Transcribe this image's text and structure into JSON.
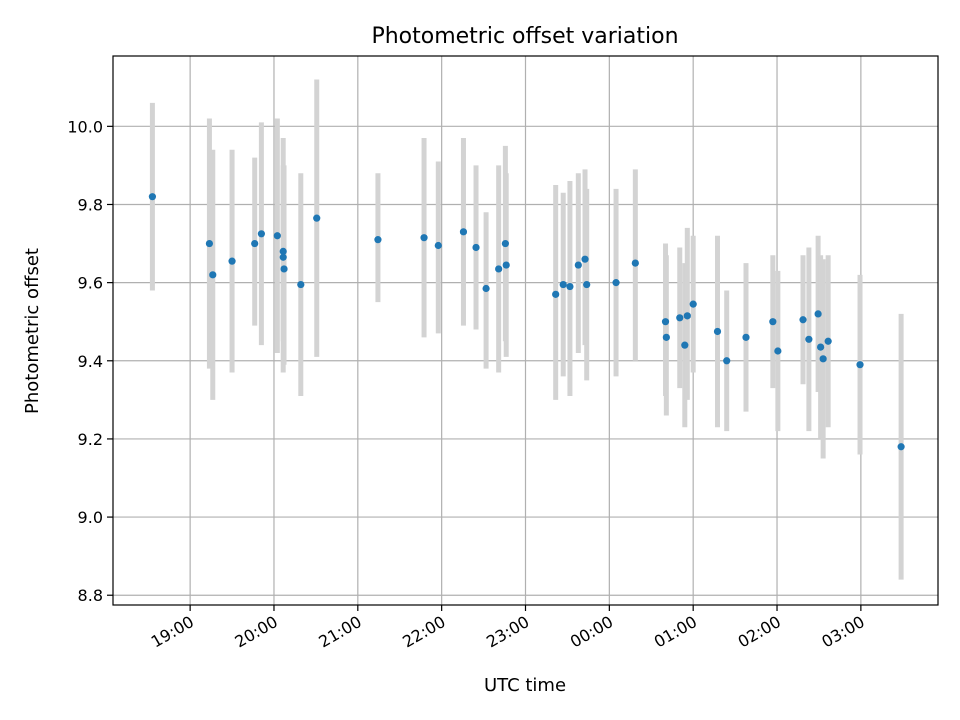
{
  "chart_data": {
    "type": "scatter",
    "title": "Photometric offset variation",
    "xlabel": "UTC time",
    "ylabel": "Photometric offset",
    "x_unit": "hours since 00:00 UTC",
    "xlim": [
      -5.92,
      3.92
    ],
    "ylim": [
      8.775,
      10.18
    ],
    "grid": true,
    "point_color": "#1f77b4",
    "errorbar_color": "#d3d3d3",
    "x_ticks": [
      {
        "value": -5,
        "label": "19:00"
      },
      {
        "value": -4,
        "label": "20:00"
      },
      {
        "value": -3,
        "label": "21:00"
      },
      {
        "value": -2,
        "label": "22:00"
      },
      {
        "value": -1,
        "label": "23:00"
      },
      {
        "value": 0,
        "label": "00:00"
      },
      {
        "value": 1,
        "label": "01:00"
      },
      {
        "value": 2,
        "label": "02:00"
      },
      {
        "value": 3,
        "label": "03:00"
      }
    ],
    "y_ticks": [
      {
        "value": 8.8,
        "label": "8.8"
      },
      {
        "value": 9.0,
        "label": "9.0"
      },
      {
        "value": 9.2,
        "label": "9.2"
      },
      {
        "value": 9.4,
        "label": "9.4"
      },
      {
        "value": 9.6,
        "label": "9.6"
      },
      {
        "value": 9.8,
        "label": "9.8"
      },
      {
        "value": 10.0,
        "label": "10.0"
      }
    ],
    "points": [
      {
        "x": -5.45,
        "y": 9.82,
        "lo": 9.58,
        "hi": 10.06
      },
      {
        "x": -4.77,
        "y": 9.7,
        "lo": 9.38,
        "hi": 10.02
      },
      {
        "x": -4.73,
        "y": 9.62,
        "lo": 9.3,
        "hi": 9.94
      },
      {
        "x": -4.5,
        "y": 9.655,
        "lo": 9.37,
        "hi": 9.94
      },
      {
        "x": -4.23,
        "y": 9.7,
        "lo": 9.49,
        "hi": 9.92
      },
      {
        "x": -4.15,
        "y": 9.725,
        "lo": 9.44,
        "hi": 10.01
      },
      {
        "x": -3.96,
        "y": 9.72,
        "lo": 9.42,
        "hi": 10.02
      },
      {
        "x": -3.89,
        "y": 9.68,
        "lo": 9.37,
        "hi": 9.97
      },
      {
        "x": -3.88,
        "y": 9.635,
        "lo": 9.39,
        "hi": 9.9
      },
      {
        "x": -3.89,
        "y": 9.665,
        "lo": 9.45,
        "hi": 9.9
      },
      {
        "x": -3.68,
        "y": 9.595,
        "lo": 9.31,
        "hi": 9.88
      },
      {
        "x": -3.49,
        "y": 9.765,
        "lo": 9.41,
        "hi": 10.12
      },
      {
        "x": -2.76,
        "y": 9.71,
        "lo": 9.55,
        "hi": 9.88
      },
      {
        "x": -2.21,
        "y": 9.715,
        "lo": 9.46,
        "hi": 9.97
      },
      {
        "x": -2.04,
        "y": 9.695,
        "lo": 9.47,
        "hi": 9.91
      },
      {
        "x": -1.74,
        "y": 9.73,
        "lo": 9.49,
        "hi": 9.97
      },
      {
        "x": -1.59,
        "y": 9.69,
        "lo": 9.48,
        "hi": 9.9
      },
      {
        "x": -1.47,
        "y": 9.585,
        "lo": 9.38,
        "hi": 9.78
      },
      {
        "x": -1.32,
        "y": 9.635,
        "lo": 9.37,
        "hi": 9.9
      },
      {
        "x": -1.24,
        "y": 9.7,
        "lo": 9.45,
        "hi": 9.95
      },
      {
        "x": -1.23,
        "y": 9.645,
        "lo": 9.41,
        "hi": 9.88
      },
      {
        "x": -0.64,
        "y": 9.57,
        "lo": 9.3,
        "hi": 9.85
      },
      {
        "x": -0.55,
        "y": 9.595,
        "lo": 9.36,
        "hi": 9.83
      },
      {
        "x": -0.47,
        "y": 9.59,
        "lo": 9.31,
        "hi": 9.86
      },
      {
        "x": -0.37,
        "y": 9.645,
        "lo": 9.42,
        "hi": 9.88
      },
      {
        "x": -0.29,
        "y": 9.66,
        "lo": 9.44,
        "hi": 9.89
      },
      {
        "x": -0.27,
        "y": 9.595,
        "lo": 9.35,
        "hi": 9.84
      },
      {
        "x": 0.08,
        "y": 9.6,
        "lo": 9.36,
        "hi": 9.84
      },
      {
        "x": 0.31,
        "y": 9.65,
        "lo": 9.4,
        "hi": 9.89
      },
      {
        "x": 0.67,
        "y": 9.5,
        "lo": 9.31,
        "hi": 9.7
      },
      {
        "x": 0.68,
        "y": 9.46,
        "lo": 9.26,
        "hi": 9.67
      },
      {
        "x": 0.84,
        "y": 9.51,
        "lo": 9.33,
        "hi": 9.69
      },
      {
        "x": 0.9,
        "y": 9.44,
        "lo": 9.23,
        "hi": 9.65
      },
      {
        "x": 0.93,
        "y": 9.515,
        "lo": 9.3,
        "hi": 9.74
      },
      {
        "x": 1.0,
        "y": 9.545,
        "lo": 9.37,
        "hi": 9.72
      },
      {
        "x": 1.29,
        "y": 9.475,
        "lo": 9.23,
        "hi": 9.72
      },
      {
        "x": 1.4,
        "y": 9.4,
        "lo": 9.22,
        "hi": 9.58
      },
      {
        "x": 1.63,
        "y": 9.46,
        "lo": 9.27,
        "hi": 9.65
      },
      {
        "x": 1.95,
        "y": 9.5,
        "lo": 9.33,
        "hi": 9.67
      },
      {
        "x": 2.01,
        "y": 9.425,
        "lo": 9.22,
        "hi": 9.63
      },
      {
        "x": 2.31,
        "y": 9.505,
        "lo": 9.34,
        "hi": 9.67
      },
      {
        "x": 2.38,
        "y": 9.455,
        "lo": 9.22,
        "hi": 9.69
      },
      {
        "x": 2.49,
        "y": 9.52,
        "lo": 9.32,
        "hi": 9.72
      },
      {
        "x": 2.52,
        "y": 9.435,
        "lo": 9.2,
        "hi": 9.67
      },
      {
        "x": 2.55,
        "y": 9.405,
        "lo": 9.15,
        "hi": 9.66
      },
      {
        "x": 2.61,
        "y": 9.45,
        "lo": 9.23,
        "hi": 9.67
      },
      {
        "x": 2.99,
        "y": 9.39,
        "lo": 9.16,
        "hi": 9.62
      },
      {
        "x": 3.48,
        "y": 9.18,
        "lo": 8.84,
        "hi": 9.52
      }
    ]
  }
}
